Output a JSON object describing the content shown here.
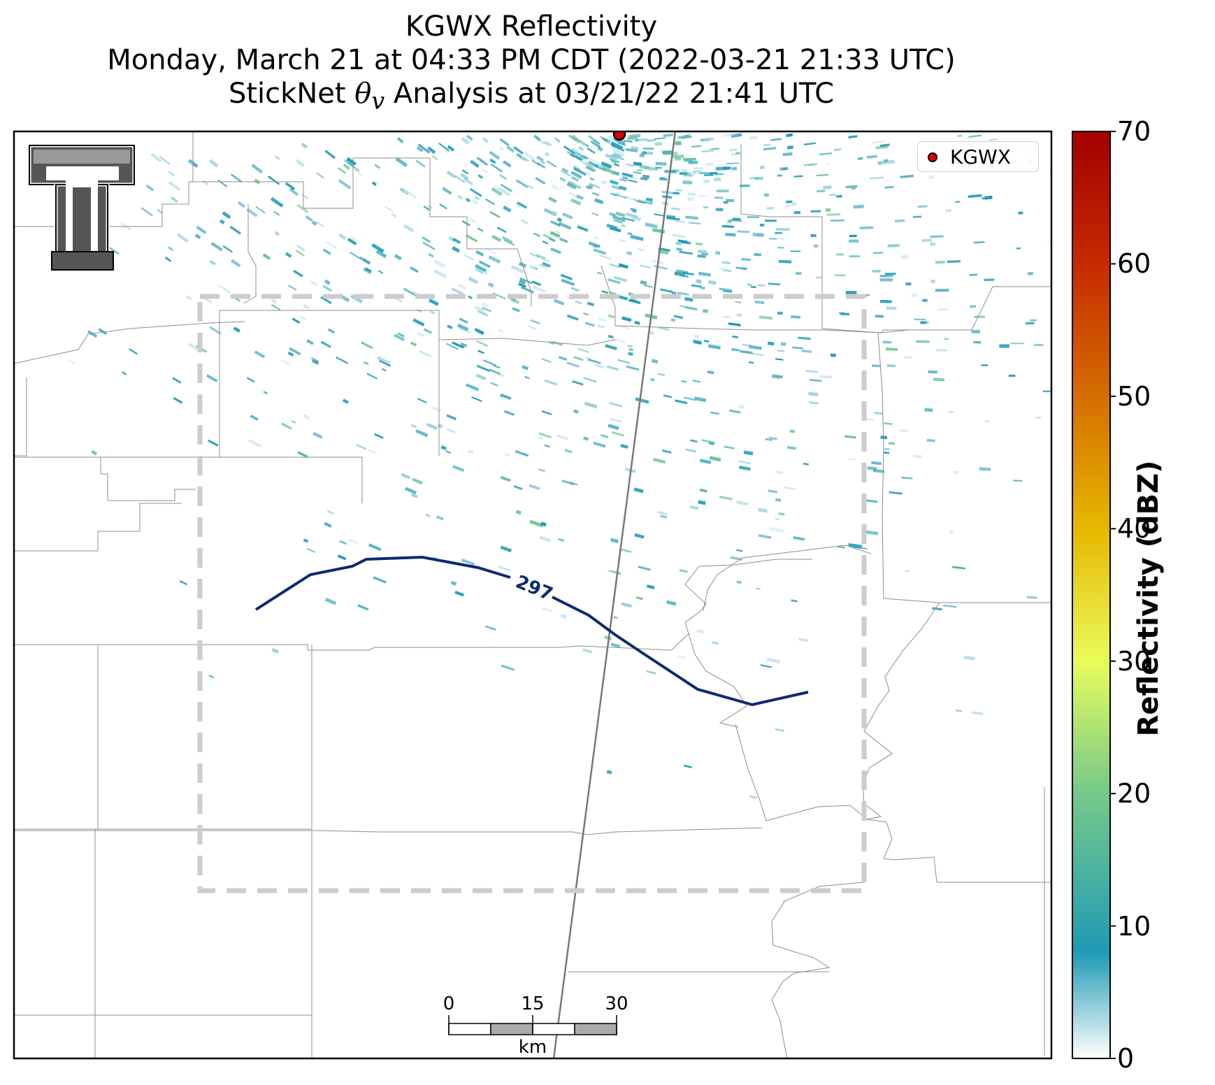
{
  "title": {
    "line1": "KGWX Reflectivity",
    "line2": "Monday, March 21 at 04:33 PM CDT (2022-03-21 21:33 UTC)",
    "line3_prefix": "StickNet ",
    "line3_symbol": "θ",
    "line3_subscript": "v",
    "line3_suffix": " Analysis at 03/21/22 21:41 UTC"
  },
  "legend": {
    "label": "KGWX",
    "marker_color": "#e60000"
  },
  "colorbar": {
    "label": "Reflectivity (dBZ)",
    "ticks": [
      "0",
      "10",
      "20",
      "30",
      "40",
      "50",
      "60",
      "70"
    ],
    "range": [
      0,
      70
    ],
    "stops": [
      {
        "value": 0,
        "color": "#ffffff"
      },
      {
        "value": 8,
        "color": "#1f9ab5"
      },
      {
        "value": 20,
        "color": "#74c98a"
      },
      {
        "value": 30,
        "color": "#e9fb5c"
      },
      {
        "value": 40,
        "color": "#e6b800"
      },
      {
        "value": 50,
        "color": "#d56d00"
      },
      {
        "value": 60,
        "color": "#c72a00"
      },
      {
        "value": 70,
        "color": "#a30000"
      }
    ]
  },
  "contour": {
    "label": "297",
    "color": "#0b2a6f"
  },
  "scale_bar": {
    "ticks": [
      "0",
      "15",
      "30"
    ],
    "unit": "km"
  },
  "logo": {
    "name": "Texas Tech double-T logo",
    "text": "T"
  },
  "colors": {
    "analysis_box": "#cccccc",
    "county_lines": "#8c8c8c",
    "radar_beam": "#777777"
  }
}
